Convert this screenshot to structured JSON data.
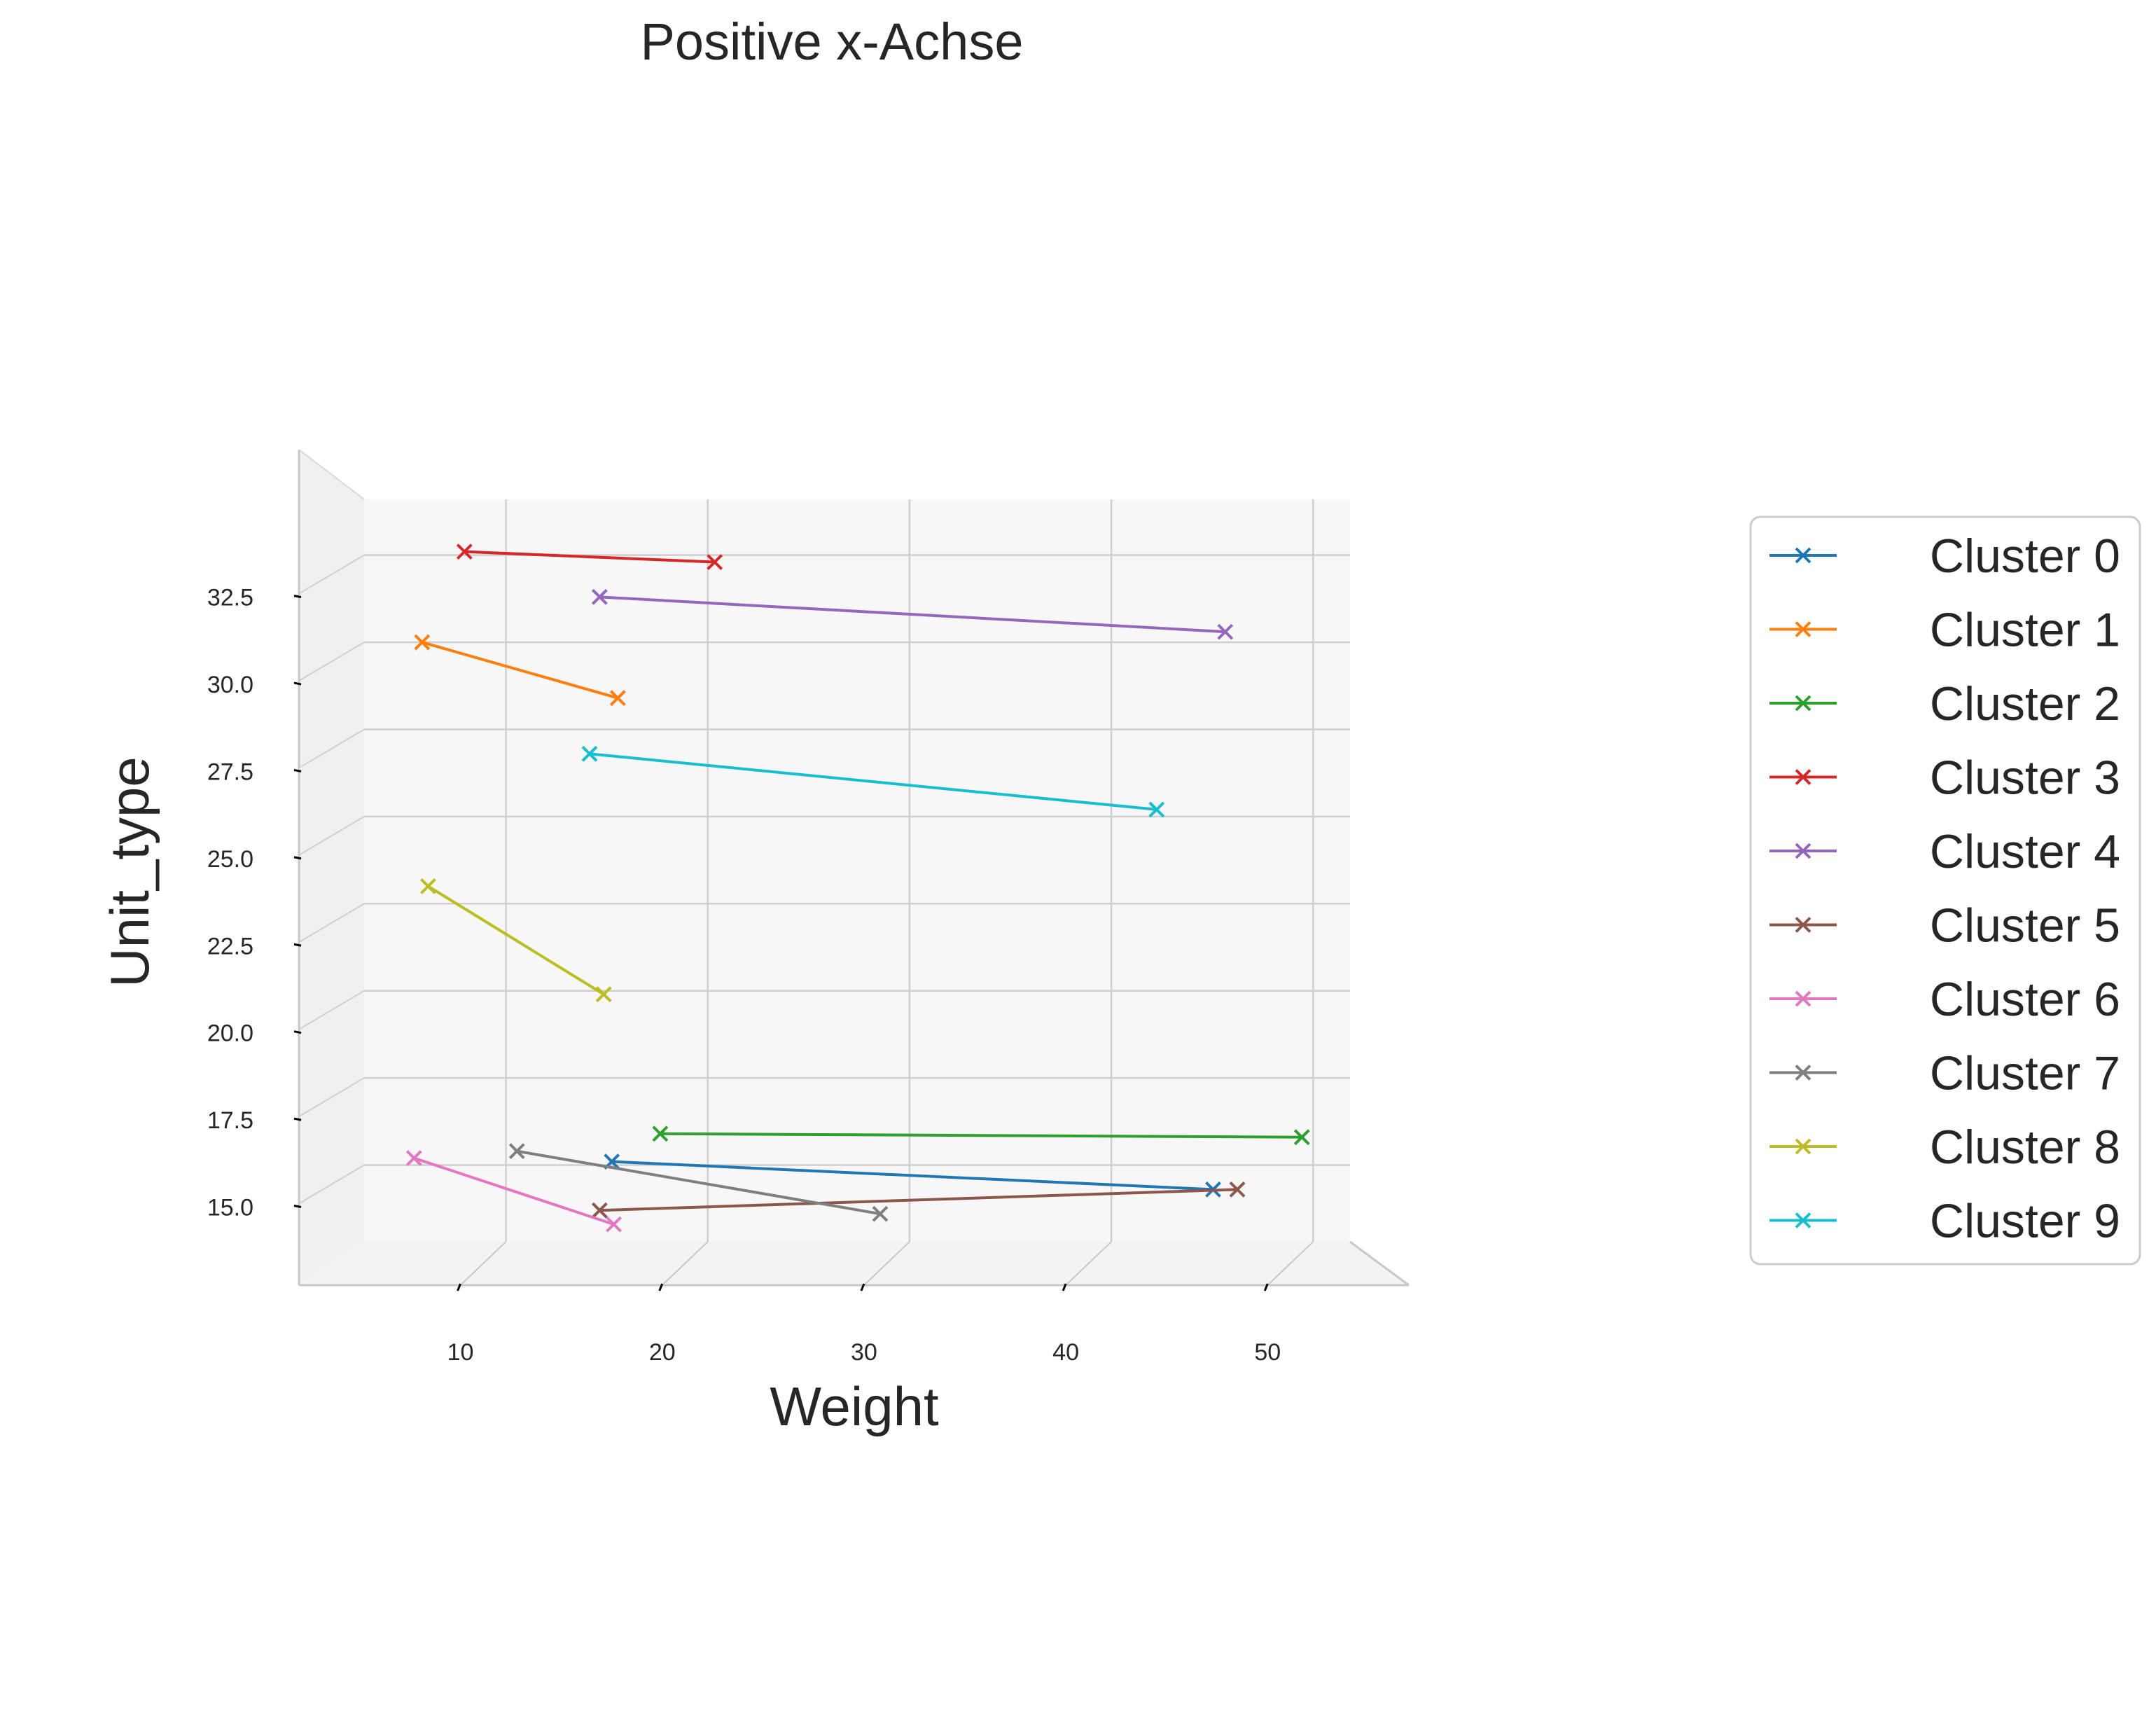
{
  "chart_data": {
    "type": "line",
    "title": "Positive x-Achse",
    "xlabel": "Weight",
    "ylabel": "Unit_type",
    "xlim": [
      2,
      57
    ],
    "ylim": [
      12.8,
      34.1
    ],
    "x_ticks": [
      10,
      20,
      30,
      40,
      50
    ],
    "x_tick_labels": [
      "10",
      "20",
      "30",
      "40",
      "50"
    ],
    "y_ticks": [
      15.0,
      17.5,
      20.0,
      22.5,
      25.0,
      27.5,
      30.0,
      32.5
    ],
    "y_tick_labels": [
      "15.0",
      "17.5",
      "20.0",
      "22.5",
      "25.0",
      "27.5",
      "30.0",
      "32.5"
    ],
    "grid": true,
    "legend_position": "right",
    "marker": "x",
    "series": [
      {
        "name": "Cluster 0",
        "color": "#1f77b4",
        "points": [
          [
            17.5,
            15.1
          ],
          [
            47.3,
            14.3
          ]
        ]
      },
      {
        "name": "Cluster 1",
        "color": "#ff7f0e",
        "points": [
          [
            8.1,
            30.0
          ],
          [
            17.8,
            28.4
          ]
        ]
      },
      {
        "name": "Cluster 2",
        "color": "#2ca02c",
        "points": [
          [
            19.9,
            15.9
          ],
          [
            51.7,
            15.8
          ]
        ]
      },
      {
        "name": "Cluster 3",
        "color": "#d62728",
        "points": [
          [
            10.2,
            32.6
          ],
          [
            22.6,
            32.3
          ]
        ]
      },
      {
        "name": "Cluster 4",
        "color": "#9467bd",
        "points": [
          [
            16.9,
            31.3
          ],
          [
            47.9,
            30.3
          ]
        ]
      },
      {
        "name": "Cluster 5",
        "color": "#8c564b",
        "points": [
          [
            16.9,
            13.7
          ],
          [
            48.5,
            14.3
          ]
        ]
      },
      {
        "name": "Cluster 6",
        "color": "#e377c2",
        "points": [
          [
            7.7,
            15.2
          ],
          [
            17.6,
            13.3
          ]
        ]
      },
      {
        "name": "Cluster 7",
        "color": "#7f7f7f",
        "points": [
          [
            12.8,
            15.4
          ],
          [
            30.8,
            13.6
          ]
        ]
      },
      {
        "name": "Cluster 8",
        "color": "#bcbd22",
        "points": [
          [
            8.4,
            23.0
          ],
          [
            17.1,
            19.9
          ]
        ]
      },
      {
        "name": "Cluster 9",
        "color": "#17becf",
        "points": [
          [
            16.4,
            26.8
          ],
          [
            44.5,
            25.2
          ]
        ]
      }
    ]
  }
}
